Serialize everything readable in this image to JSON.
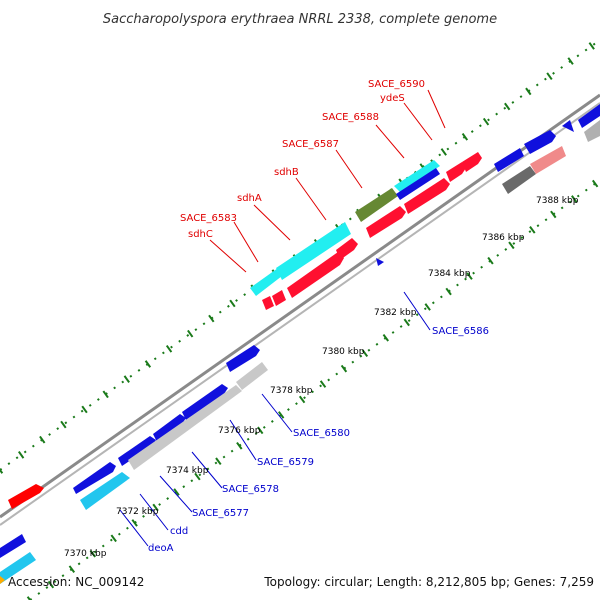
{
  "title": "Saccharopolyspora erythraea NRRL 2338, complete genome",
  "footer": {
    "accession": "Accession: NC_009142",
    "summary": "Topology: circular; Length: 8,212,805 bp; Genes: 7,259"
  },
  "colors": {
    "backbone": "#8a8a8a",
    "tick": "#1a7a1a",
    "label_forward": "#e00000",
    "label_reverse": "#0000cc"
  },
  "scale_labels": [
    "7370 kbp",
    "7372 kbp",
    "7374 kbp",
    "7376 kbp",
    "7378 kbp",
    "7380 kbp",
    "7382 kbp",
    "7384 kbp",
    "7386 kbp",
    "7388 kbp"
  ],
  "labels_forward": [
    "SACE_6590",
    "ydeS",
    "SACE_6588",
    "SACE_6587",
    "sdhB",
    "sdhA",
    "SACE_6583",
    "sdhC"
  ],
  "labels_reverse": [
    "SACE_6586",
    "SACE_6580",
    "SACE_6579",
    "SACE_6578",
    "SACE_6577",
    "cdd",
    "deoA"
  ]
}
